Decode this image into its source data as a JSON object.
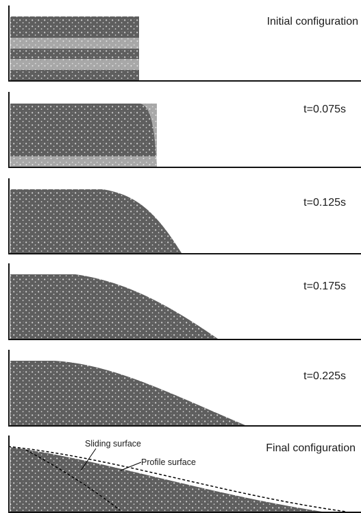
{
  "figure": {
    "panels": [
      {
        "label": "Initial configuration"
      },
      {
        "label": "t=0.075s"
      },
      {
        "label": "t=0.125s"
      },
      {
        "label": "t=0.175s"
      },
      {
        "label": "t=0.225s"
      },
      {
        "label": "Final configuration"
      }
    ],
    "annotations": {
      "sliding_surface": "Sliding surface",
      "profile_surface": "Profile surface"
    },
    "colors": {
      "dark_layer": "#5e5e5e",
      "light_layer": "#a8a8a8",
      "axis": "#111111",
      "marker": "#000000"
    }
  }
}
